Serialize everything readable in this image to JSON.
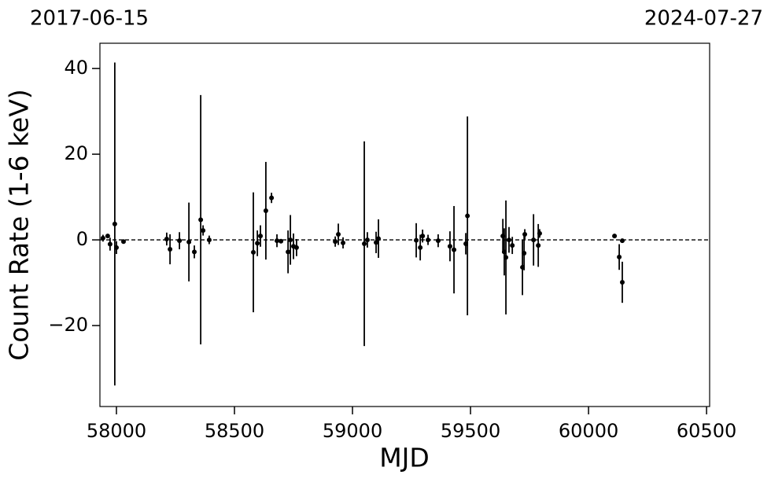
{
  "chart_data": {
    "type": "errorbar",
    "annotations": [
      "2017-06-15",
      "2024-07-27"
    ],
    "xlabel": "MJD",
    "ylabel": "Count Rate (1-6 keV)",
    "color": "#000000",
    "hline": 0,
    "xlim": [
      57930,
      60513
    ],
    "ylim": [
      -38.9,
      45.9
    ],
    "xticks": [
      58000,
      58500,
      59000,
      59500,
      60000,
      60500
    ],
    "yticks": [
      {
        "value": -20,
        "label": "−20"
      },
      0,
      20,
      40
    ],
    "x": [
      57943,
      57963,
      57973,
      57993,
      58000,
      58030,
      58213,
      58227,
      58267,
      58307,
      58330,
      58357,
      58367,
      58393,
      58580,
      58597,
      58610,
      58633,
      58657,
      58680,
      58697,
      58727,
      58737,
      58750,
      58763,
      58927,
      58940,
      58960,
      59050,
      59063,
      59100,
      59110,
      59270,
      59287,
      59297,
      59320,
      59363,
      59413,
      59430,
      59480,
      59487,
      59637,
      59643,
      59650,
      59663,
      59677,
      59720,
      59727,
      59730,
      59767,
      59787,
      59793,
      60110,
      60130,
      60143,
      60143
    ],
    "values": [
      0.4,
      0.9,
      -1,
      3.7,
      -1.8,
      -0.4,
      0.2,
      -2.2,
      -0.2,
      -0.5,
      -2.8,
      4.7,
      2.2,
      0,
      -2.9,
      -0.8,
      0.9,
      6.8,
      9.8,
      -0.2,
      -0.3,
      -2.8,
      0,
      -1.5,
      -1.8,
      -0.4,
      1.3,
      -0.7,
      -0.9,
      0,
      -0.6,
      0.3,
      -0.1,
      -1.8,
      0.9,
      0,
      -0.2,
      -1.5,
      -2.3,
      -0.9,
      5.6,
      0.9,
      -2.8,
      -4.1,
      0,
      -1.3,
      -6.4,
      -3.1,
      1.3,
      0,
      -1.3,
      1.5,
      0.9,
      -4,
      -0.2,
      -9.9
    ],
    "errors": [
      0.8,
      0.5,
      1.5,
      37.7,
      1.5,
      0.3,
      1.5,
      3.5,
      2,
      9.2,
      1.5,
      29.1,
      1.2,
      1,
      14,
      3,
      2.5,
      11.4,
      1.2,
      1.5,
      0.3,
      5,
      5.8,
      3,
      2,
      1.2,
      2.5,
      1.3,
      23.9,
      1.8,
      2.5,
      4.5,
      4,
      3,
      1.5,
      1.2,
      1.5,
      3.5,
      10.2,
      2.5,
      23.2,
      4,
      5.5,
      13.3,
      3,
      2,
      6.5,
      4,
      1.2,
      6,
      5,
      1,
      0.5,
      3,
      0.4,
      4.8
    ]
  }
}
